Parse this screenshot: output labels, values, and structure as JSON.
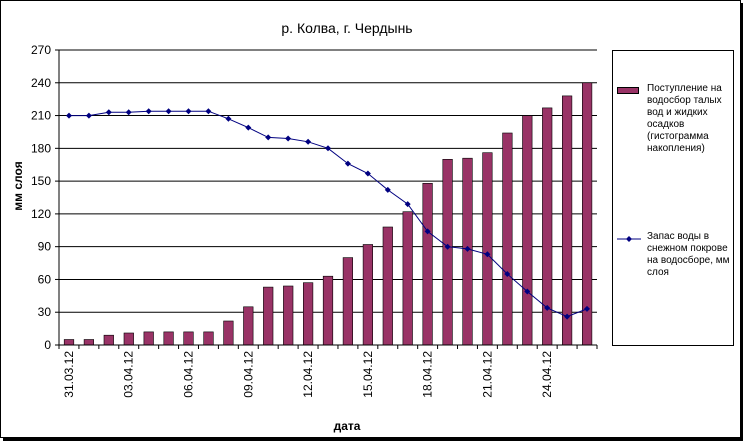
{
  "chart_data": {
    "type": "bar",
    "title": "р. Колва, г. Чердынь",
    "xlabel": "дата",
    "ylabel": "мм слоя",
    "ylim": [
      0,
      270
    ],
    "yticks": [
      0,
      30,
      60,
      90,
      120,
      150,
      180,
      210,
      240,
      270
    ],
    "grid": true,
    "legend_position": "right",
    "categories": [
      "31.03.12",
      "01.04.12",
      "02.04.12",
      "03.04.12",
      "04.04.12",
      "05.04.12",
      "06.04.12",
      "07.04.12",
      "08.04.12",
      "09.04.12",
      "10.04.12",
      "11.04.12",
      "12.04.12",
      "13.04.12",
      "14.04.12",
      "15.04.12",
      "16.04.12",
      "17.04.12",
      "18.04.12",
      "19.04.12",
      "20.04.12",
      "21.04.12",
      "22.04.12",
      "23.04.12",
      "24.04.12",
      "25.04.12",
      "26.04.12"
    ],
    "tick_labels": [
      "31.03.12",
      "03.04.12",
      "06.04.12",
      "09.04.12",
      "12.04.12",
      "15.04.12",
      "18.04.12",
      "21.04.12",
      "24.04.12"
    ],
    "series": [
      {
        "name": "Поступление на водосбор талых вод и жидких осадков (гистограмма накопления)",
        "kind": "bar",
        "color": "#993366",
        "values": [
          5,
          5,
          9,
          11,
          12,
          12,
          12,
          12,
          22,
          35,
          53,
          54,
          57,
          63,
          80,
          92,
          108,
          122,
          148,
          170,
          171,
          176,
          194,
          210,
          217,
          228,
          240
        ]
      },
      {
        "name": "Запас воды в снежном покрове на водосборе, мм слоя",
        "kind": "line",
        "color": "#000080",
        "values": [
          210,
          210,
          213,
          213,
          214,
          214,
          214,
          214,
          207,
          199,
          190,
          189,
          186,
          180,
          166,
          157,
          142,
          129,
          104,
          90,
          88,
          83,
          65,
          49,
          34,
          26,
          33
        ]
      }
    ]
  }
}
